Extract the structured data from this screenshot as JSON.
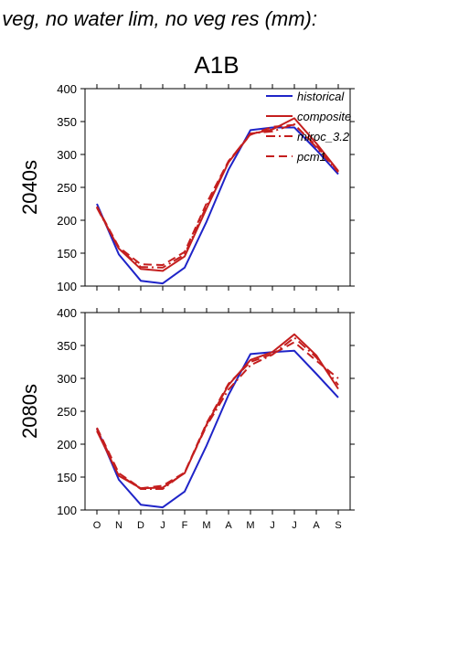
{
  "header": {
    "title": "f veg, no water lim, no veg res (mm):",
    "scenario": "A1B"
  },
  "chart_data": {
    "type": "line",
    "categories": [
      "O",
      "N",
      "D",
      "J",
      "F",
      "M",
      "A",
      "M",
      "J",
      "J",
      "A",
      "S"
    ],
    "ylim": [
      100,
      400
    ],
    "yticks": [
      100,
      150,
      200,
      250,
      300,
      350,
      400
    ],
    "legend_position": "top-right",
    "legend": [
      {
        "label": "historical",
        "color": "#1f24c8",
        "dash": "solid"
      },
      {
        "label": "composite",
        "color": "#c41e1e",
        "dash": "solid"
      },
      {
        "label": "miroc_3.2",
        "color": "#c41e1e",
        "dash": "dashdot"
      },
      {
        "label": "pcm1",
        "color": "#c41e1e",
        "dash": "dashed"
      }
    ],
    "panels": [
      {
        "ylabel": "2040s",
        "series": [
          {
            "name": "historical",
            "values": [
              225,
              148,
              108,
              104,
              128,
              198,
              277,
              337,
              341,
              341,
              307,
              270
            ]
          },
          {
            "name": "composite",
            "values": [
              220,
              157,
              126,
              123,
              145,
              218,
              288,
              331,
              338,
              355,
              317,
              275
            ]
          },
          {
            "name": "miroc_3.2",
            "values": [
              219,
              157,
              129,
              128,
              148,
              222,
              289,
              332,
              335,
              346,
              311,
              273
            ]
          },
          {
            "name": "pcm1",
            "values": [
              221,
              159,
              133,
              132,
              152,
              226,
              290,
              330,
              342,
              345,
              313,
              274
            ]
          }
        ]
      },
      {
        "ylabel": "2080s",
        "series": [
          {
            "name": "historical",
            "values": [
              224,
              146,
              108,
              104,
              128,
              198,
              275,
              337,
              340,
              342,
              307,
              271
            ]
          },
          {
            "name": "composite",
            "values": [
              220,
              152,
              133,
              134,
              156,
              230,
              290,
              328,
              340,
              367,
              335,
              284
            ]
          },
          {
            "name": "miroc_3.2",
            "values": [
              223,
              154,
              132,
              132,
              157,
              228,
              283,
              320,
              336,
              362,
              332,
              290
            ]
          },
          {
            "name": "pcm1",
            "values": [
              225,
              156,
              133,
              137,
              157,
              232,
              292,
              325,
              337,
              355,
              327,
              300
            ]
          }
        ]
      }
    ]
  }
}
